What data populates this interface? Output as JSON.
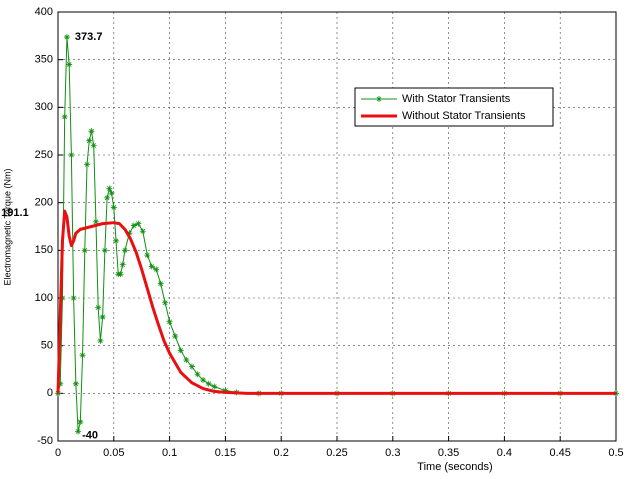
{
  "chart_data": {
    "type": "line",
    "xlabel": "Time (seconds)",
    "ylabel": "Electromagnetic Torque (Nm)",
    "xlim": [
      0,
      0.5
    ],
    "xticks": [
      0,
      0.05,
      0.1,
      0.15,
      0.2,
      0.25,
      0.3,
      0.35,
      0.4,
      0.45,
      0.5
    ],
    "ylim": [
      -50,
      400
    ],
    "yticks": [
      -50,
      0,
      50,
      100,
      150,
      200,
      250,
      300,
      350,
      400
    ],
    "grid": true,
    "series": [
      {
        "name": "With Stator Transients",
        "color": "#109010",
        "marker": "*",
        "x": [
          0,
          0.002,
          0.004,
          0.006,
          0.008,
          0.01,
          0.012,
          0.014,
          0.016,
          0.018,
          0.02,
          0.022,
          0.024,
          0.026,
          0.028,
          0.03,
          0.032,
          0.034,
          0.036,
          0.038,
          0.04,
          0.042,
          0.044,
          0.046,
          0.048,
          0.05,
          0.052,
          0.054,
          0.056,
          0.058,
          0.06,
          0.064,
          0.068,
          0.072,
          0.076,
          0.08,
          0.084,
          0.088,
          0.092,
          0.096,
          0.1,
          0.105,
          0.11,
          0.115,
          0.12,
          0.125,
          0.13,
          0.135,
          0.14,
          0.15,
          0.16,
          0.18,
          0.2,
          0.25,
          0.3,
          0.35,
          0.4,
          0.45,
          0.5
        ],
        "values": [
          0,
          10,
          100,
          290,
          373.7,
          345,
          250,
          100,
          10,
          -40,
          -30,
          40,
          150,
          240,
          265,
          275,
          260,
          180,
          90,
          55,
          80,
          150,
          205,
          215,
          210,
          195,
          160,
          125,
          125,
          135,
          150,
          168,
          176,
          178,
          170,
          145,
          133,
          130,
          115,
          95,
          75,
          60,
          45,
          35,
          28,
          20,
          14,
          10,
          7,
          3,
          1,
          0,
          0,
          0,
          0,
          0,
          0,
          0,
          0
        ]
      },
      {
        "name": "Without Stator Transients",
        "color": "#e81010",
        "x": [
          0,
          0.002,
          0.004,
          0.006,
          0.008,
          0.01,
          0.012,
          0.014,
          0.016,
          0.02,
          0.03,
          0.04,
          0.05,
          0.055,
          0.06,
          0.065,
          0.07,
          0.075,
          0.08,
          0.085,
          0.09,
          0.095,
          0.1,
          0.11,
          0.12,
          0.13,
          0.14,
          0.15,
          0.17,
          0.2,
          0.3,
          0.4,
          0.5
        ],
        "values": [
          0,
          80,
          160,
          191.1,
          185,
          165,
          155,
          160,
          168,
          172,
          175,
          178,
          179,
          178,
          172,
          162,
          148,
          130,
          110,
          90,
          72,
          55,
          42,
          22,
          11,
          5,
          2,
          1,
          0,
          0,
          0,
          0,
          0
        ]
      }
    ],
    "annotations": [
      {
        "text": "373.7",
        "x": 0.008,
        "y": 373.7
      },
      {
        "text": "191.1",
        "x": 0.006,
        "y": 191.1
      },
      {
        "text": "-40",
        "x": 0.018,
        "y": -40
      }
    ]
  }
}
